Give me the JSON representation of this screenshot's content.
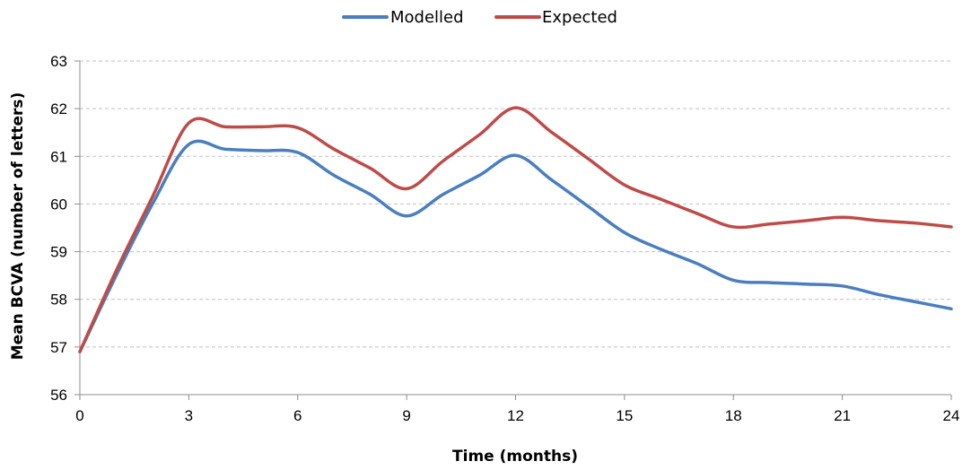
{
  "chart_data": {
    "type": "line",
    "title": "",
    "xlabel": "Time (months)",
    "ylabel": "Mean BCVA (number of letters)",
    "xlim": [
      0,
      24
    ],
    "ylim": [
      56,
      63
    ],
    "x_ticks": [
      0,
      3,
      6,
      9,
      12,
      15,
      18,
      21,
      24
    ],
    "y_ticks": [
      56,
      57,
      58,
      59,
      60,
      61,
      62,
      63
    ],
    "grid": "horizontal dashed",
    "legend_position": "top-center",
    "series": [
      {
        "name": "Modelled",
        "color": "#4a7ebf",
        "x": [
          0,
          1,
          2,
          3,
          4,
          5,
          6,
          7,
          8,
          9,
          10,
          11,
          12,
          13,
          14,
          15,
          16,
          17,
          18,
          19,
          20,
          21,
          22,
          23,
          24
        ],
        "values": [
          56.9,
          58.5,
          60.0,
          61.25,
          61.15,
          61.12,
          61.08,
          60.6,
          60.2,
          59.75,
          60.2,
          60.6,
          61.02,
          60.5,
          59.95,
          59.4,
          59.05,
          58.75,
          58.4,
          58.35,
          58.32,
          58.28,
          58.1,
          57.95,
          57.8
        ]
      },
      {
        "name": "Expected",
        "color": "#be4b48",
        "x": [
          0,
          1,
          2,
          3,
          4,
          5,
          6,
          7,
          8,
          9,
          10,
          11,
          12,
          13,
          14,
          15,
          16,
          17,
          18,
          19,
          20,
          21,
          22,
          23,
          24
        ],
        "values": [
          56.9,
          58.6,
          60.15,
          61.7,
          61.62,
          61.62,
          61.6,
          61.15,
          60.75,
          60.32,
          60.9,
          61.45,
          62.02,
          61.5,
          60.95,
          60.4,
          60.1,
          59.8,
          59.52,
          59.58,
          59.65,
          59.72,
          59.65,
          59.6,
          59.52
        ]
      }
    ]
  }
}
